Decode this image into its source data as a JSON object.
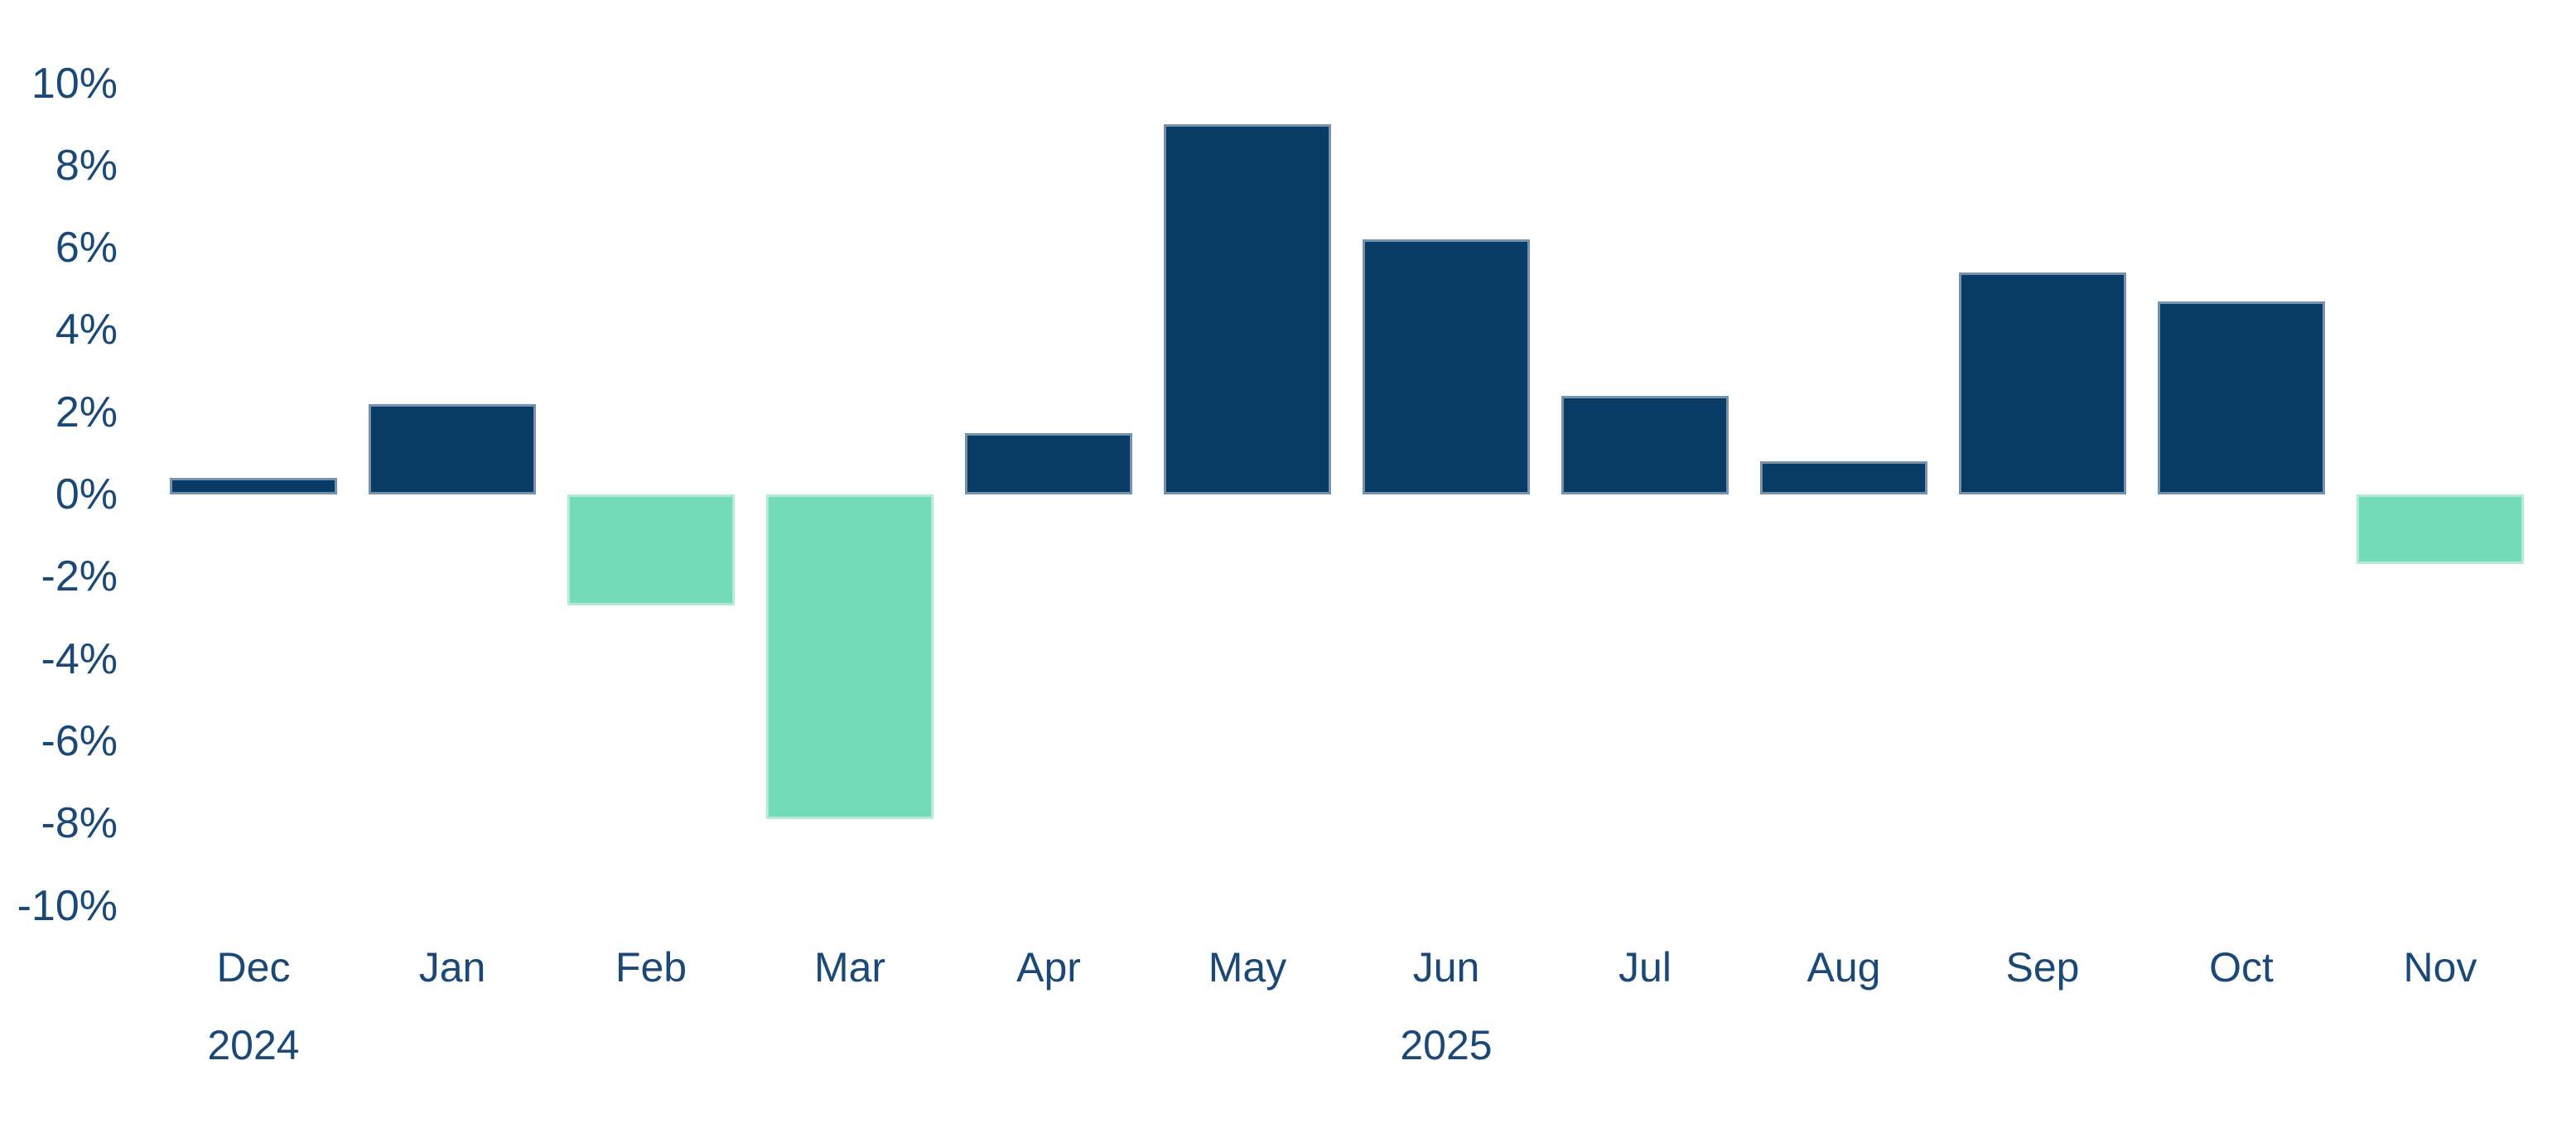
{
  "chart_data": {
    "type": "bar",
    "title": "",
    "unit": "%",
    "categories": [
      "Dec",
      "Jan",
      "Feb",
      "Mar",
      "Apr",
      "May",
      "Jun",
      "Jul",
      "Aug",
      "Sep",
      "Oct",
      "Nov"
    ],
    "values": [
      0.4,
      2.2,
      -2.7,
      -7.9,
      1.5,
      9.0,
      6.2,
      2.4,
      0.8,
      5.4,
      4.7,
      -1.7
    ],
    "ylim": [
      -10,
      10
    ],
    "ytick_step": 2,
    "ytick_labels": [
      "10%",
      "8%",
      "6%",
      "4%",
      "2%",
      "0%",
      "-2%",
      "-4%",
      "-6%",
      "-8%",
      "-10%"
    ],
    "years": [
      {
        "label": "2024",
        "under_month": "Dec"
      },
      {
        "label": "2025",
        "under_month": "Jun"
      }
    ],
    "colors": {
      "positive": "#083B66",
      "negative": "#74DBB8",
      "axis_text": "#1B4977"
    },
    "grid": false,
    "legend": false,
    "layout_hints": {
      "orientation": "vertical",
      "zero_line": "implicit (no drawn axis line)",
      "negative_bar_color_differs": true
    }
  }
}
